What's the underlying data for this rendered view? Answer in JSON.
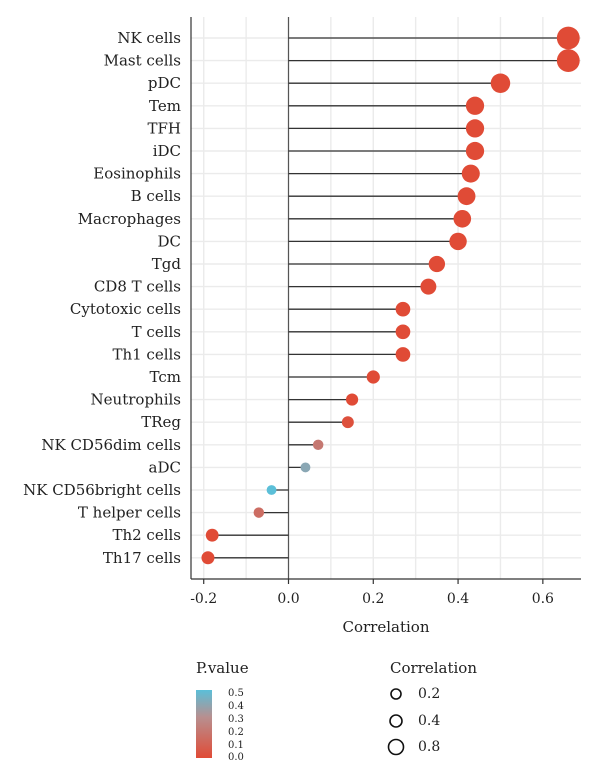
{
  "chart_data": {
    "type": "lollipop",
    "categories": [
      "NK cells",
      "Mast cells",
      "pDC",
      "Tem",
      "TFH",
      "iDC",
      "Eosinophils",
      "B cells",
      "Macrophages",
      "DC",
      "Tgd",
      "CD8 T cells",
      "Cytotoxic cells",
      "T cells",
      "Th1 cells",
      "Tcm",
      "Neutrophils",
      "TReg",
      "NK CD56dim cells",
      "aDC",
      "NK CD56bright cells",
      "T helper cells",
      "Th2 cells",
      "Th17 cells"
    ],
    "values": [
      0.66,
      0.66,
      0.5,
      0.44,
      0.44,
      0.44,
      0.43,
      0.42,
      0.41,
      0.4,
      0.35,
      0.33,
      0.27,
      0.27,
      0.27,
      0.2,
      0.15,
      0.14,
      0.07,
      0.04,
      -0.04,
      -0.07,
      -0.18,
      -0.19
    ],
    "pvalues": [
      0.0,
      0.0,
      0.0,
      0.0,
      0.0,
      0.0,
      0.0,
      0.0,
      0.0,
      0.0,
      0.0,
      0.0,
      0.0,
      0.0,
      0.0,
      0.0,
      0.0,
      0.02,
      0.2,
      0.4,
      0.5,
      0.15,
      0.0,
      0.0
    ],
    "xlabel": "Correlation",
    "xlim": [
      -0.23,
      0.69
    ],
    "xticks": [
      "-0.2",
      "0.0",
      "0.2",
      "0.4",
      "0.6"
    ],
    "xtick_values": [
      -0.2,
      0.0,
      0.2,
      0.4,
      0.6
    ],
    "grid": true,
    "legend_placement": "bottom"
  },
  "legend": {
    "color_title": "P.value",
    "color_ticks": [
      "0.5",
      "0.4",
      "0.3",
      "0.2",
      "0.1",
      "0.0"
    ],
    "color_low": "#e04b36",
    "color_high": "#5bbfd8",
    "size_title": "Correlation",
    "size_items": [
      "0.2",
      "0.4",
      "0.8"
    ]
  }
}
